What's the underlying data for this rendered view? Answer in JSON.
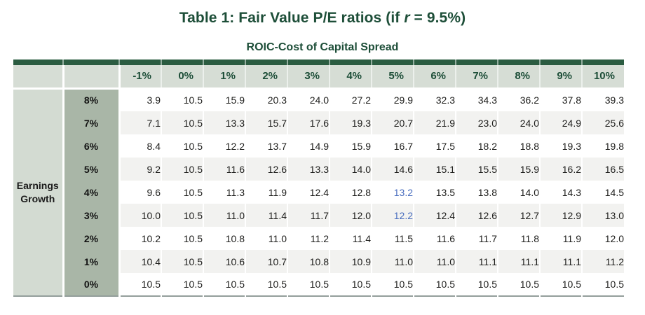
{
  "title": {
    "prefix": "Table 1: Fair Value P/E ratios (if ",
    "italic": "r",
    "suffix": " = 9.5%)"
  },
  "subtitle": "ROIC-Cost of Capital Spread",
  "row_axis_label": "Earnings Growth",
  "colors": {
    "dark_green": "#1d4e38",
    "bar_green": "#2b5c41",
    "header_bg": "#d6ddd5",
    "row_axis_bg": "#d3dbd2",
    "row_header_bg": "#a9b6a7",
    "alt_row_bg": "#f2f2f0",
    "value_text": "#1d1d1b",
    "highlight_blue": "#4b6fbf",
    "bottom_border": "#939e9b"
  },
  "chart_data": {
    "type": "table",
    "title": "Table 1: Fair Value P/E ratios (if r = 9.5%)",
    "column_axis_title": "ROIC-Cost of Capital Spread",
    "row_axis_title": "Earnings Growth",
    "column_headers": [
      "-1%",
      "0%",
      "1%",
      "2%",
      "3%",
      "4%",
      "5%",
      "6%",
      "7%",
      "8%",
      "9%",
      "10%"
    ],
    "row_headers": [
      "8%",
      "7%",
      "6%",
      "5%",
      "4%",
      "3%",
      "2%",
      "1%",
      "0%"
    ],
    "rows": [
      [
        "3.9",
        "10.5",
        "15.9",
        "20.3",
        "24.0",
        "27.2",
        "29.9",
        "32.3",
        "34.3",
        "36.2",
        "37.8",
        "39.3"
      ],
      [
        "7.1",
        "10.5",
        "13.3",
        "15.7",
        "17.6",
        "19.3",
        "20.7",
        "21.9",
        "23.0",
        "24.0",
        "24.9",
        "25.6"
      ],
      [
        "8.4",
        "10.5",
        "12.2",
        "13.7",
        "14.9",
        "15.9",
        "16.7",
        "17.5",
        "18.2",
        "18.8",
        "19.3",
        "19.8"
      ],
      [
        "9.2",
        "10.5",
        "11.6",
        "12.6",
        "13.3",
        "14.0",
        "14.6",
        "15.1",
        "15.5",
        "15.9",
        "16.2",
        "16.5"
      ],
      [
        "9.6",
        "10.5",
        "11.3",
        "11.9",
        "12.4",
        "12.8",
        "13.2",
        "13.5",
        "13.8",
        "14.0",
        "14.3",
        "14.5"
      ],
      [
        "10.0",
        "10.5",
        "11.0",
        "11.4",
        "11.7",
        "12.0",
        "12.2",
        "12.4",
        "12.6",
        "12.7",
        "12.9",
        "13.0"
      ],
      [
        "10.2",
        "10.5",
        "10.8",
        "11.0",
        "11.2",
        "11.4",
        "11.5",
        "11.6",
        "11.7",
        "11.8",
        "11.9",
        "12.0"
      ],
      [
        "10.4",
        "10.5",
        "10.6",
        "10.7",
        "10.8",
        "10.9",
        "11.0",
        "11.0",
        "11.1",
        "11.1",
        "11.1",
        "11.2"
      ],
      [
        "10.5",
        "10.5",
        "10.5",
        "10.5",
        "10.5",
        "10.5",
        "10.5",
        "10.5",
        "10.5",
        "10.5",
        "10.5",
        "10.5"
      ]
    ],
    "highlights": [
      {
        "row": 4,
        "col": 6,
        "value": "13.2"
      },
      {
        "row": 5,
        "col": 6,
        "value": "12.2"
      }
    ]
  }
}
